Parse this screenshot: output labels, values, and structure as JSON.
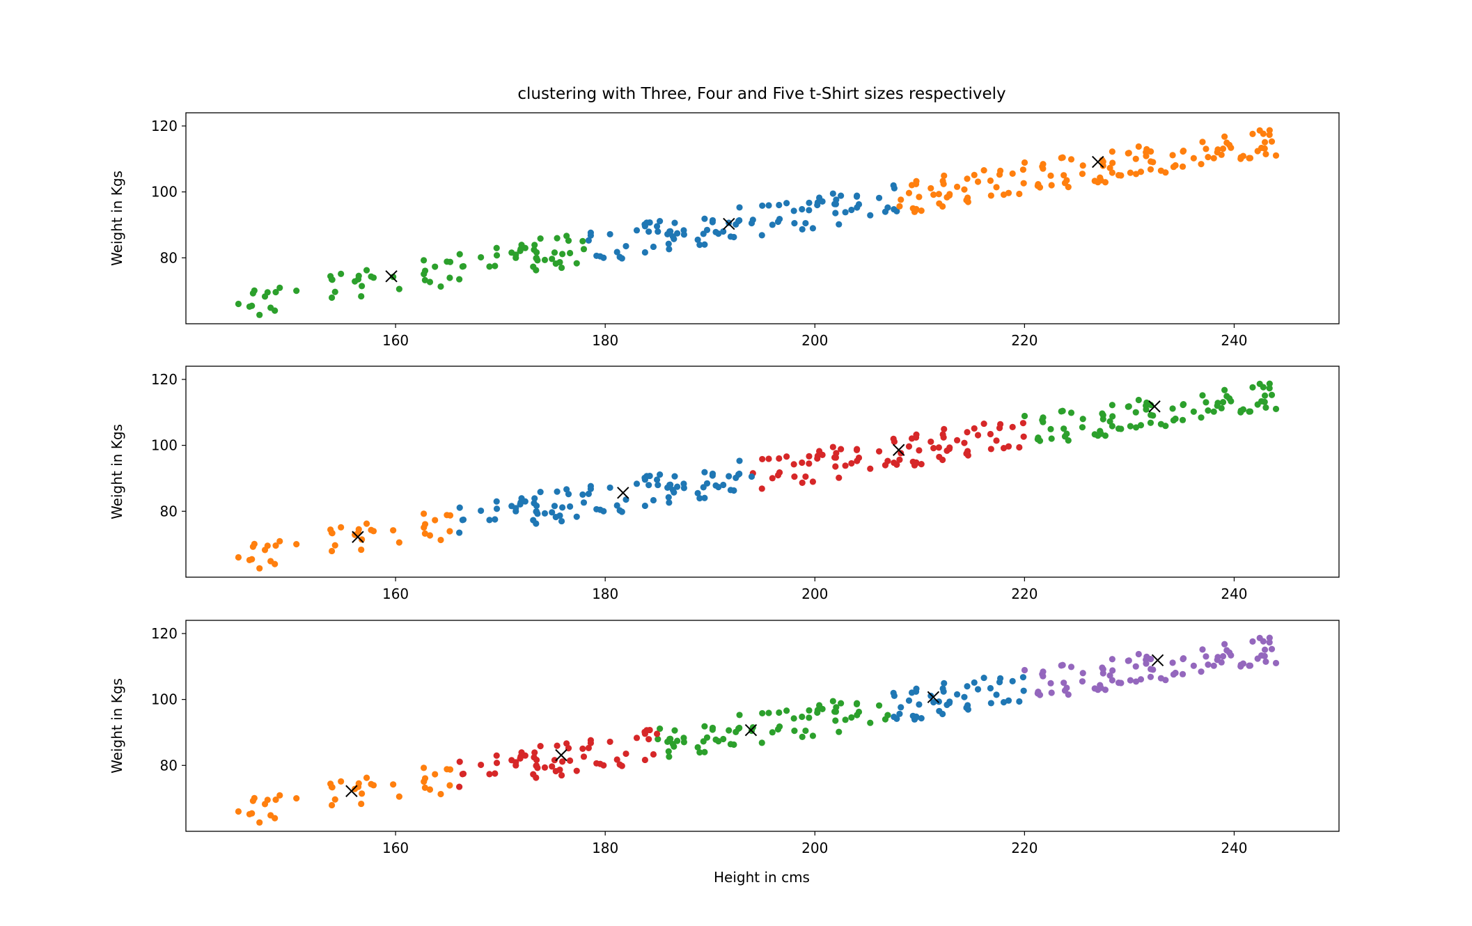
{
  "title": "clustering with Three, Four and Five t-Shirt sizes respectively",
  "xlabel": "Height in cms",
  "colors": {
    "blue": "#1f77b4",
    "orange": "#ff7f0e",
    "green": "#2ca02c",
    "red": "#d62728",
    "purple": "#9467bd",
    "centroid": "#000000"
  },
  "chart_data": [
    {
      "type": "scatter",
      "ylabel": "Weight in Kgs",
      "xlim": [
        140,
        250
      ],
      "ylim": [
        60,
        124
      ],
      "xticks": [
        160,
        180,
        200,
        220,
        240
      ],
      "yticks": [
        80,
        100,
        120
      ],
      "clusters": [
        {
          "color": "green",
          "x_range": [
            145,
            178
          ]
        },
        {
          "color": "blue",
          "x_range": [
            178,
            208
          ]
        },
        {
          "color": "orange",
          "x_range": [
            208,
            244
          ]
        }
      ],
      "centroids": [
        [
          159.6,
          74.4
        ],
        [
          191.8,
          90.3
        ],
        [
          227.0,
          109.1
        ]
      ]
    },
    {
      "type": "scatter",
      "ylabel": "Weight in Kgs",
      "xlim": [
        140,
        250
      ],
      "ylim": [
        60,
        124
      ],
      "xticks": [
        160,
        180,
        200,
        220,
        240
      ],
      "yticks": [
        80,
        100,
        120
      ],
      "clusters": [
        {
          "color": "orange",
          "x_range": [
            145,
            166
          ]
        },
        {
          "color": "blue",
          "x_range": [
            166,
            194
          ]
        },
        {
          "color": "red",
          "x_range": [
            194,
            220
          ]
        },
        {
          "color": "green",
          "x_range": [
            220,
            244
          ]
        }
      ],
      "centroids": [
        [
          156.4,
          72.2
        ],
        [
          181.7,
          85.6
        ],
        [
          208.0,
          98.6
        ],
        [
          232.4,
          111.8
        ]
      ]
    },
    {
      "type": "scatter",
      "ylabel": "Weight in Kgs",
      "xlim": [
        140,
        250
      ],
      "ylim": [
        60,
        124
      ],
      "xticks": [
        160,
        180,
        200,
        220,
        240
      ],
      "yticks": [
        80,
        100,
        120
      ],
      "xlabel_shown": true,
      "clusters": [
        {
          "color": "orange",
          "x_range": [
            145,
            166
          ]
        },
        {
          "color": "red",
          "x_range": [
            166,
            185
          ]
        },
        {
          "color": "green",
          "x_range": [
            185,
            207
          ]
        },
        {
          "color": "blue",
          "x_range": [
            207,
            220
          ]
        },
        {
          "color": "purple",
          "x_range": [
            220,
            244
          ]
        }
      ],
      "centroids": [
        [
          155.8,
          72.2
        ],
        [
          175.8,
          83.1
        ],
        [
          193.9,
          90.7
        ],
        [
          211.3,
          100.7
        ],
        [
          232.7,
          111.9
        ]
      ]
    }
  ]
}
